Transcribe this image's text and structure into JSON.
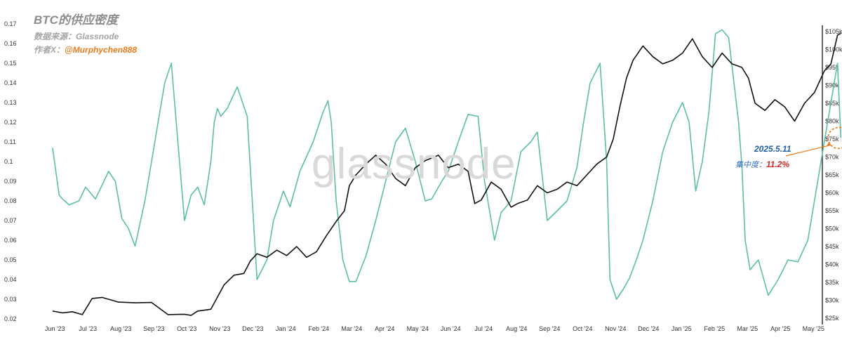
{
  "header": {
    "title": "BTC的供应密度",
    "source": "数据来源：Glassnode",
    "author_prefix": "作者X：",
    "author_handle": "@Murphychen888"
  },
  "watermark": "glassnode",
  "annotation": {
    "date": "2025.5.11",
    "label": "集中度：",
    "value": "11.2%"
  },
  "colors": {
    "density": "#5cbfa6",
    "price": "#111111",
    "callout": "#f07c1e"
  },
  "chart_data": {
    "type": "line",
    "x_ticks": [
      "Jun '23",
      "Jul '23",
      "Aug '23",
      "Sep '23",
      "Oct '23",
      "Nov '23",
      "Dec '23",
      "Jan '24",
      "Feb '24",
      "Mar '24",
      "Apr '24",
      "May '24",
      "Jun '24",
      "Jul '24",
      "Aug '24",
      "Sep '24",
      "Oct '24",
      "Nov '24",
      "Dec '24",
      "Jan '25",
      "Feb '25",
      "Mar '25",
      "Apr '25",
      "May '25"
    ],
    "y_left": {
      "min": 0.02,
      "max": 0.17,
      "ticks": [
        "0.02",
        "0.03",
        "0.04",
        "0.05",
        "0.06",
        "0.07",
        "0.08",
        "0.09",
        "0.1",
        "0.11",
        "0.12",
        "0.13",
        "0.14",
        "0.15",
        "0.16",
        "0.17"
      ]
    },
    "y_right": {
      "min": 25000,
      "max": 105000,
      "ticks": [
        "$25k",
        "$30k",
        "$35k",
        "$40k",
        "$45k",
        "$50k",
        "$55k",
        "$60k",
        "$65k",
        "$70k",
        "$75k",
        "$80k",
        "$85k",
        "$90k",
        "$95k",
        "$100k",
        "$105k"
      ]
    },
    "series": [
      {
        "axis": "left",
        "x": [
          0,
          0.2,
          0.3,
          0.5,
          0.8,
          1.0,
          1.3,
          1.7,
          1.9,
          2.1,
          2.3,
          2.5,
          2.8,
          3.0,
          3.2,
          3.4,
          3.6,
          3.8,
          4.0,
          4.2,
          4.4,
          4.6,
          4.8,
          4.9,
          5.0,
          5.1,
          5.3,
          5.6,
          5.9,
          6.2,
          6.5,
          6.7,
          7.0,
          7.2,
          7.5,
          7.9,
          8.2,
          8.35,
          8.45,
          8.6,
          8.8,
          9.0,
          9.2,
          9.5,
          9.8,
          10.1,
          10.4,
          10.7,
          11.0,
          11.3,
          11.5,
          11.8,
          12.0,
          12.3,
          12.6,
          12.9,
          13.1,
          13.4,
          13.6,
          13.9,
          14.2,
          14.5,
          14.7,
          15.0,
          15.3,
          15.6,
          15.9,
          16.1,
          16.3,
          16.6,
          16.8,
          16.9,
          17.1,
          17.3,
          17.5,
          17.7,
          17.9,
          18.2,
          18.5,
          18.8,
          19.1,
          19.3,
          19.5,
          19.7,
          19.9,
          20.1,
          20.3,
          20.5,
          20.8,
          20.9,
          21.0,
          21.15,
          21.4,
          21.7,
          22.0,
          22.3,
          22.6,
          22.9,
          23.1,
          23.3,
          23.5,
          23.7,
          23.8,
          23.9
        ],
        "values": [
          0.107,
          0.083,
          0.081,
          0.078,
          0.08,
          0.087,
          0.081,
          0.095,
          0.09,
          0.071,
          0.066,
          0.057,
          0.08,
          0.1,
          0.12,
          0.14,
          0.15,
          0.11,
          0.07,
          0.083,
          0.087,
          0.078,
          0.1,
          0.12,
          0.127,
          0.123,
          0.127,
          0.138,
          0.123,
          0.04,
          0.05,
          0.07,
          0.085,
          0.077,
          0.095,
          0.11,
          0.125,
          0.131,
          0.12,
          0.08,
          0.05,
          0.039,
          0.039,
          0.052,
          0.07,
          0.09,
          0.11,
          0.117,
          0.1,
          0.08,
          0.081,
          0.09,
          0.095,
          0.11,
          0.124,
          0.123,
          0.09,
          0.06,
          0.074,
          0.08,
          0.105,
          0.11,
          0.115,
          0.07,
          0.075,
          0.08,
          0.097,
          0.12,
          0.14,
          0.15,
          0.1,
          0.04,
          0.03,
          0.035,
          0.041,
          0.05,
          0.06,
          0.08,
          0.105,
          0.12,
          0.13,
          0.12,
          0.085,
          0.1,
          0.125,
          0.165,
          0.167,
          0.163,
          0.12,
          0.098,
          0.06,
          0.045,
          0.05,
          0.032,
          0.04,
          0.05,
          0.049,
          0.06,
          0.08,
          0.1,
          0.12,
          0.14,
          0.15,
          0.112
        ]
      },
      {
        "axis": "right",
        "x": [
          0,
          0.3,
          0.6,
          0.9,
          1.1,
          1.2,
          1.5,
          2.0,
          2.5,
          3.0,
          3.5,
          4.0,
          4.2,
          4.4,
          4.8,
          5.2,
          5.5,
          5.8,
          6.0,
          6.2,
          6.5,
          6.8,
          7.1,
          7.4,
          7.7,
          8.0,
          8.3,
          8.6,
          8.85,
          9.0,
          9.2,
          9.5,
          9.8,
          10.1,
          10.4,
          10.7,
          11.0,
          11.3,
          11.7,
          12.0,
          12.3,
          12.6,
          12.8,
          13.0,
          13.3,
          13.6,
          13.9,
          14.1,
          14.4,
          14.7,
          15.0,
          15.3,
          15.6,
          15.9,
          16.2,
          16.5,
          16.8,
          17.0,
          17.2,
          17.4,
          17.6,
          17.9,
          18.2,
          18.5,
          18.8,
          19.1,
          19.4,
          19.7,
          20.0,
          20.3,
          20.6,
          20.9,
          21.1,
          21.3,
          21.6,
          21.9,
          22.2,
          22.5,
          22.8,
          23.1,
          23.4,
          23.6,
          23.8,
          23.9
        ],
        "values": [
          27000,
          26500,
          26800,
          26000,
          29000,
          30500,
          30800,
          29500,
          29300,
          29400,
          26000,
          26100,
          25800,
          27000,
          27500,
          34300,
          37000,
          37500,
          41000,
          43000,
          42000,
          44000,
          42500,
          45000,
          42000,
          43500,
          48000,
          52000,
          55000,
          62000,
          65000,
          68000,
          70500,
          68000,
          64000,
          62000,
          67000,
          69000,
          70500,
          67000,
          68000,
          66000,
          57000,
          58000,
          63000,
          61000,
          56000,
          57000,
          58000,
          62000,
          60000,
          61000,
          63000,
          62000,
          65000,
          68000,
          70000,
          75000,
          84000,
          92000,
          97000,
          101000,
          98000,
          96000,
          97000,
          99000,
          103000,
          98000,
          95000,
          99000,
          96000,
          95000,
          92000,
          85000,
          83000,
          86000,
          84000,
          80000,
          85000,
          88000,
          94000,
          96000,
          104000,
          104500
        ]
      }
    ],
    "callout": {
      "x": 23.9,
      "value": 0.112
    }
  }
}
